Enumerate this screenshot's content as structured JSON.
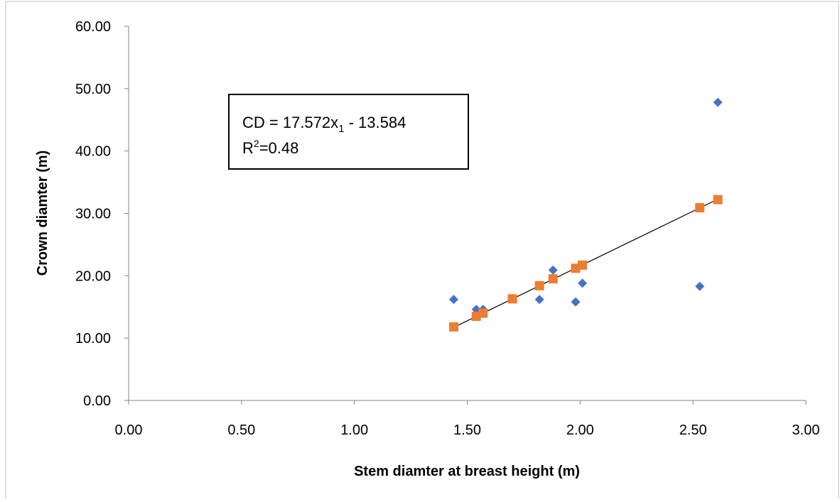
{
  "chart_data": {
    "type": "scatter",
    "title": "",
    "xlabel": "Stem diamter at breast height (m)",
    "ylabel": "Crown diamter (m)",
    "xlim": [
      0,
      3
    ],
    "ylim": [
      0,
      60
    ],
    "x_ticks": [
      "0.00",
      "0.50",
      "1.00",
      "1.50",
      "2.00",
      "2.50",
      "3.00"
    ],
    "y_ticks": [
      "0.00",
      "10.00",
      "20.00",
      "30.00",
      "40.00",
      "50.00",
      "60.00"
    ],
    "grid": false,
    "legend": "none",
    "series": [
      {
        "marker": "diamond",
        "color": "#4472C4",
        "points": [
          {
            "x": 1.44,
            "y": 16.2
          },
          {
            "x": 1.54,
            "y": 14.6
          },
          {
            "x": 1.57,
            "y": 14.6
          },
          {
            "x": 1.82,
            "y": 16.2
          },
          {
            "x": 1.88,
            "y": 20.9
          },
          {
            "x": 1.98,
            "y": 15.8
          },
          {
            "x": 2.01,
            "y": 18.8
          },
          {
            "x": 2.53,
            "y": 18.3
          },
          {
            "x": 2.61,
            "y": 47.8
          }
        ]
      },
      {
        "marker": "square",
        "color": "#ED7D31",
        "points": [
          {
            "x": 1.44,
            "y": 11.8
          },
          {
            "x": 1.54,
            "y": 13.5
          },
          {
            "x": 1.57,
            "y": 14.0
          },
          {
            "x": 1.7,
            "y": 16.3
          },
          {
            "x": 1.82,
            "y": 18.4
          },
          {
            "x": 1.88,
            "y": 19.5
          },
          {
            "x": 1.98,
            "y": 21.2
          },
          {
            "x": 2.01,
            "y": 21.7
          },
          {
            "x": 2.53,
            "y": 30.9
          },
          {
            "x": 2.61,
            "y": 32.2
          }
        ]
      }
    ],
    "trendline": {
      "color": "#000000",
      "slope": 17.572,
      "intercept": -13.584,
      "x_range": [
        1.44,
        2.61
      ]
    },
    "annotation": {
      "equation_prefix": "CD = 17.572x",
      "equation_subscript": "1",
      "equation_suffix": " - 13.584",
      "r2_base": "R",
      "r2_sup": "2",
      "r2_value": "=0.48"
    }
  }
}
